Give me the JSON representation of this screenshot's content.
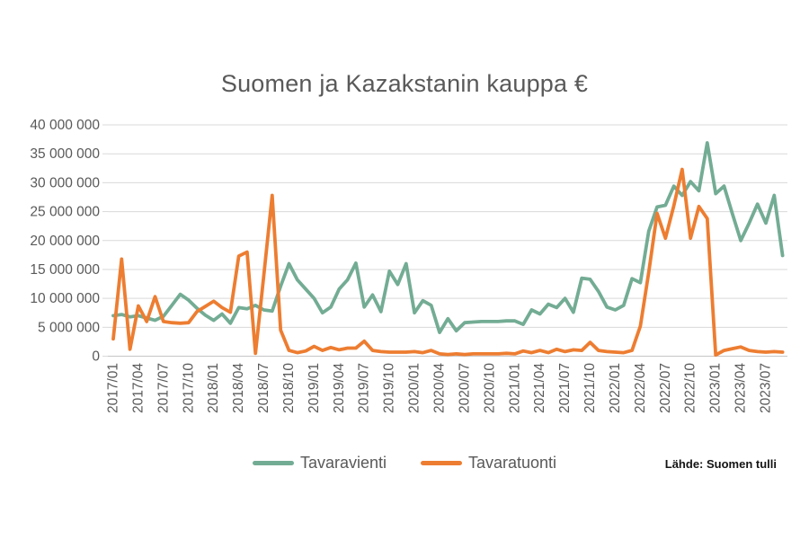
{
  "title": "Suomen ja Kazakstanin kauppa €",
  "source_note": "Lähde: Suomen tulli",
  "legend": {
    "items": [
      {
        "label": "Tavaravienti",
        "color": "#73AC94"
      },
      {
        "label": "Tavaratuonti",
        "color": "#ED7D31"
      }
    ]
  },
  "colors": {
    "export_line": "#73AC94",
    "import_line": "#ED7D31",
    "gridline": "#D9D9D9",
    "axis_line": "#C6C6C6",
    "tick_text": "#595959",
    "background": "#FFFFFF"
  },
  "chart_data": {
    "type": "line",
    "title": "Suomen ja Kazakstanin kauppa €",
    "unit": "EUR",
    "values_unit": "millions of EUR (multiply by 1 000 000)",
    "x_period": "monthly",
    "x_start": "2017/01",
    "x_end": "2023/09",
    "n_points": 81,
    "ylim": [
      0,
      40000000
    ],
    "y_tick_step": 5000000,
    "grid": "horizontal",
    "legend_position": "bottom",
    "y_tick_labels": [
      "0",
      "5 000 000",
      "10 000 000",
      "15 000 000",
      "20 000 000",
      "25 000 000",
      "30 000 000",
      "35 000 000",
      "40 000 000"
    ],
    "x_tick_labels": [
      "2017/01",
      "2017/04",
      "2017/07",
      "2017/10",
      "2018/01",
      "2018/04",
      "2018/07",
      "2018/10",
      "2019/01",
      "2019/04",
      "2019/07",
      "2019/10",
      "2020/01",
      "2020/04",
      "2020/07",
      "2020/10",
      "2021/01",
      "2021/04",
      "2021/07",
      "2021/10",
      "2022/01",
      "2022/04",
      "2022/07",
      "2022/10",
      "2023/01",
      "2023/04",
      "2023/07"
    ],
    "x_tick_every_n_months": 3,
    "series": [
      {
        "name": "Tavaravienti",
        "color": "#73AC94",
        "values_millions": [
          7.0,
          7.2,
          6.8,
          7.0,
          6.6,
          6.2,
          6.9,
          8.8,
          10.7,
          9.7,
          8.3,
          7.1,
          6.2,
          7.3,
          5.7,
          8.4,
          8.2,
          8.8,
          8.0,
          7.8,
          12.1,
          16.0,
          13.2,
          11.6,
          10.0,
          7.5,
          8.5,
          11.6,
          13.2,
          16.1,
          8.5,
          10.6,
          7.7,
          14.7,
          12.4,
          16.0,
          7.5,
          9.6,
          8.8,
          4.1,
          6.5,
          4.4,
          5.8,
          5.9,
          6.0,
          6.0,
          6.0,
          6.1,
          6.1,
          5.5,
          8.0,
          7.3,
          9.0,
          8.4,
          10.0,
          7.6,
          13.5,
          13.3,
          11.2,
          8.5,
          8.0,
          8.8,
          13.4,
          12.7,
          21.6,
          25.8,
          26.1,
          29.4,
          27.8,
          30.2,
          28.6,
          36.9,
          28.1,
          29.4,
          24.6,
          20.0,
          23.0,
          26.3,
          23.0,
          27.8,
          17.4
        ]
      },
      {
        "name": "Tavaratuonti",
        "color": "#ED7D31",
        "values_millions": [
          3.0,
          16.8,
          1.2,
          8.7,
          6.0,
          10.3,
          6.0,
          5.8,
          5.7,
          5.8,
          7.7,
          8.6,
          9.5,
          8.4,
          7.6,
          17.3,
          18.0,
          0.5,
          14.0,
          27.8,
          4.5,
          1.0,
          0.6,
          0.9,
          1.7,
          1.0,
          1.5,
          1.1,
          1.4,
          1.4,
          2.6,
          1.0,
          0.8,
          0.7,
          0.7,
          0.7,
          0.8,
          0.6,
          1.0,
          0.4,
          0.3,
          0.4,
          0.3,
          0.4,
          0.4,
          0.4,
          0.4,
          0.5,
          0.4,
          0.9,
          0.6,
          1.0,
          0.6,
          1.2,
          0.8,
          1.1,
          1.0,
          2.4,
          1.0,
          0.8,
          0.7,
          0.6,
          1.0,
          5.2,
          14.5,
          24.7,
          20.4,
          26.0,
          32.3,
          20.4,
          25.9,
          23.8,
          0.2,
          1.0,
          1.3,
          1.6,
          1.0,
          0.8,
          0.7,
          0.8,
          0.7
        ]
      }
    ]
  }
}
